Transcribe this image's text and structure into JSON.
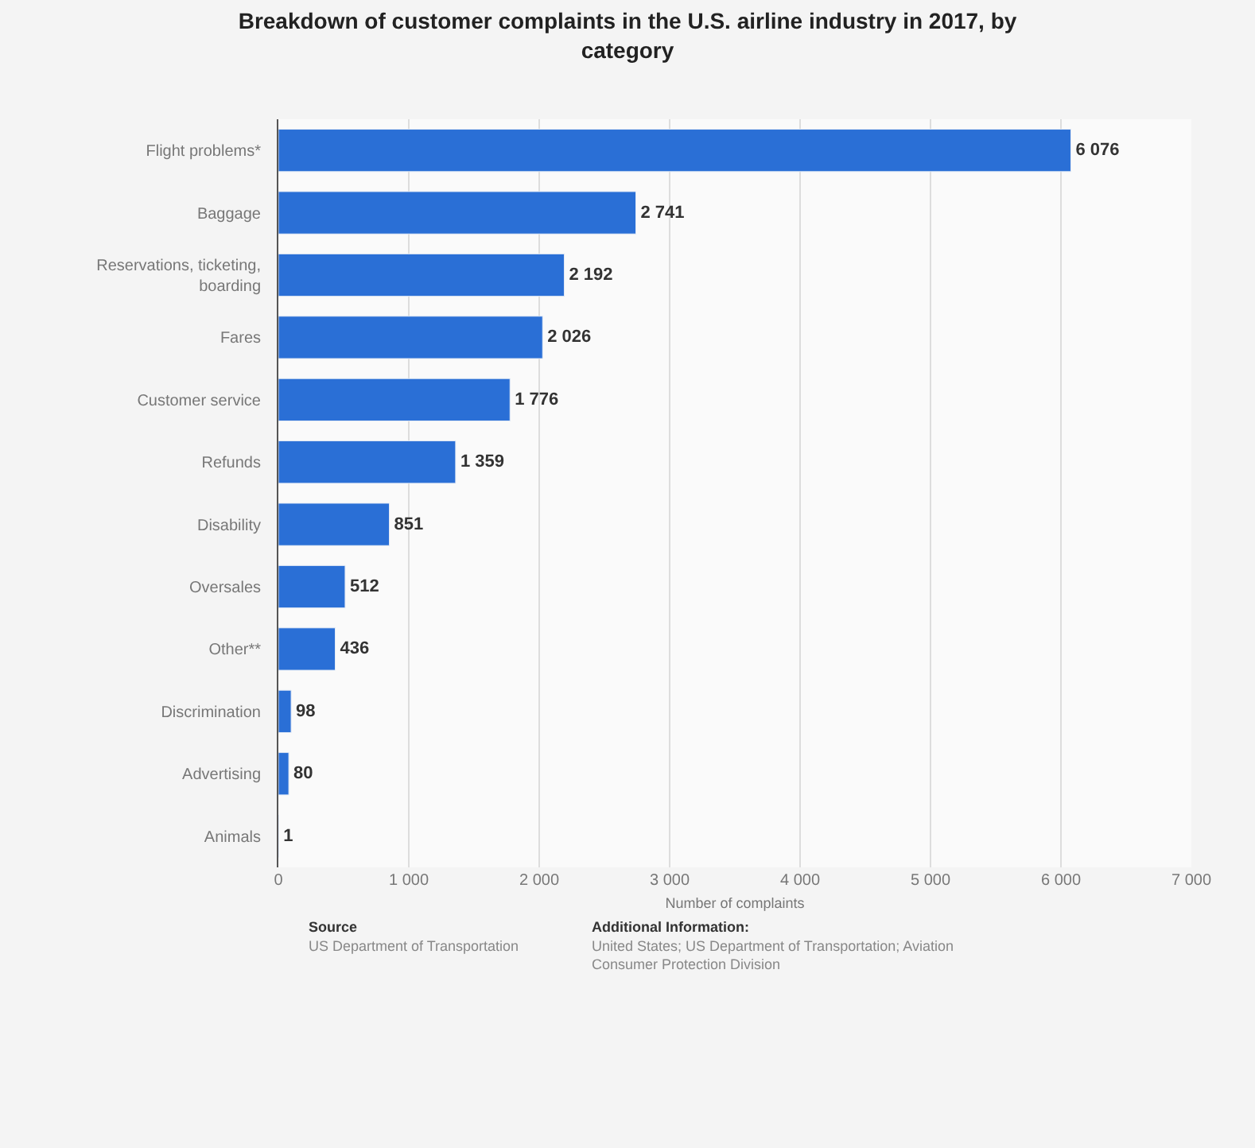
{
  "chart_data": {
    "type": "bar",
    "orientation": "horizontal",
    "title": "Breakdown of customer complaints in the U.S. airline industry in 2017, by category",
    "xlabel": "Number of complaints",
    "categories": [
      "Flight problems*",
      "Baggage",
      "Reservations, ticketing, boarding",
      "Fares",
      "Customer service",
      "Refunds",
      "Disability",
      "Oversales",
      "Other**",
      "Discrimination",
      "Advertising",
      "Animals"
    ],
    "values": [
      6076,
      2741,
      2192,
      2026,
      1776,
      1359,
      851,
      512,
      436,
      98,
      80,
      1
    ],
    "value_labels": [
      "6 076",
      "2 741",
      "2 192",
      "2 026",
      "1 776",
      "1 359",
      "851",
      "512",
      "436",
      "98",
      "80",
      "1"
    ],
    "color": "#2a6fd6",
    "xlim": [
      0,
      7000
    ],
    "xticks": [
      0,
      {
        "value": 1000,
        "label": "1 000"
      },
      {
        "value": 2000,
        "label": "2 000"
      },
      {
        "value": 3000,
        "label": "3 000"
      },
      {
        "value": 4000,
        "label": "4 000"
      },
      {
        "value": 5000,
        "label": "5 000"
      },
      {
        "value": 6000,
        "label": "6 000"
      },
      {
        "value": 7000,
        "label": "7 000"
      }
    ],
    "grid": "x",
    "annotations": [
      "Source",
      "US Department of Transportation",
      "Additional Information:",
      "United States; US Department of Transportation; Aviation Consumer Protection Division"
    ]
  }
}
